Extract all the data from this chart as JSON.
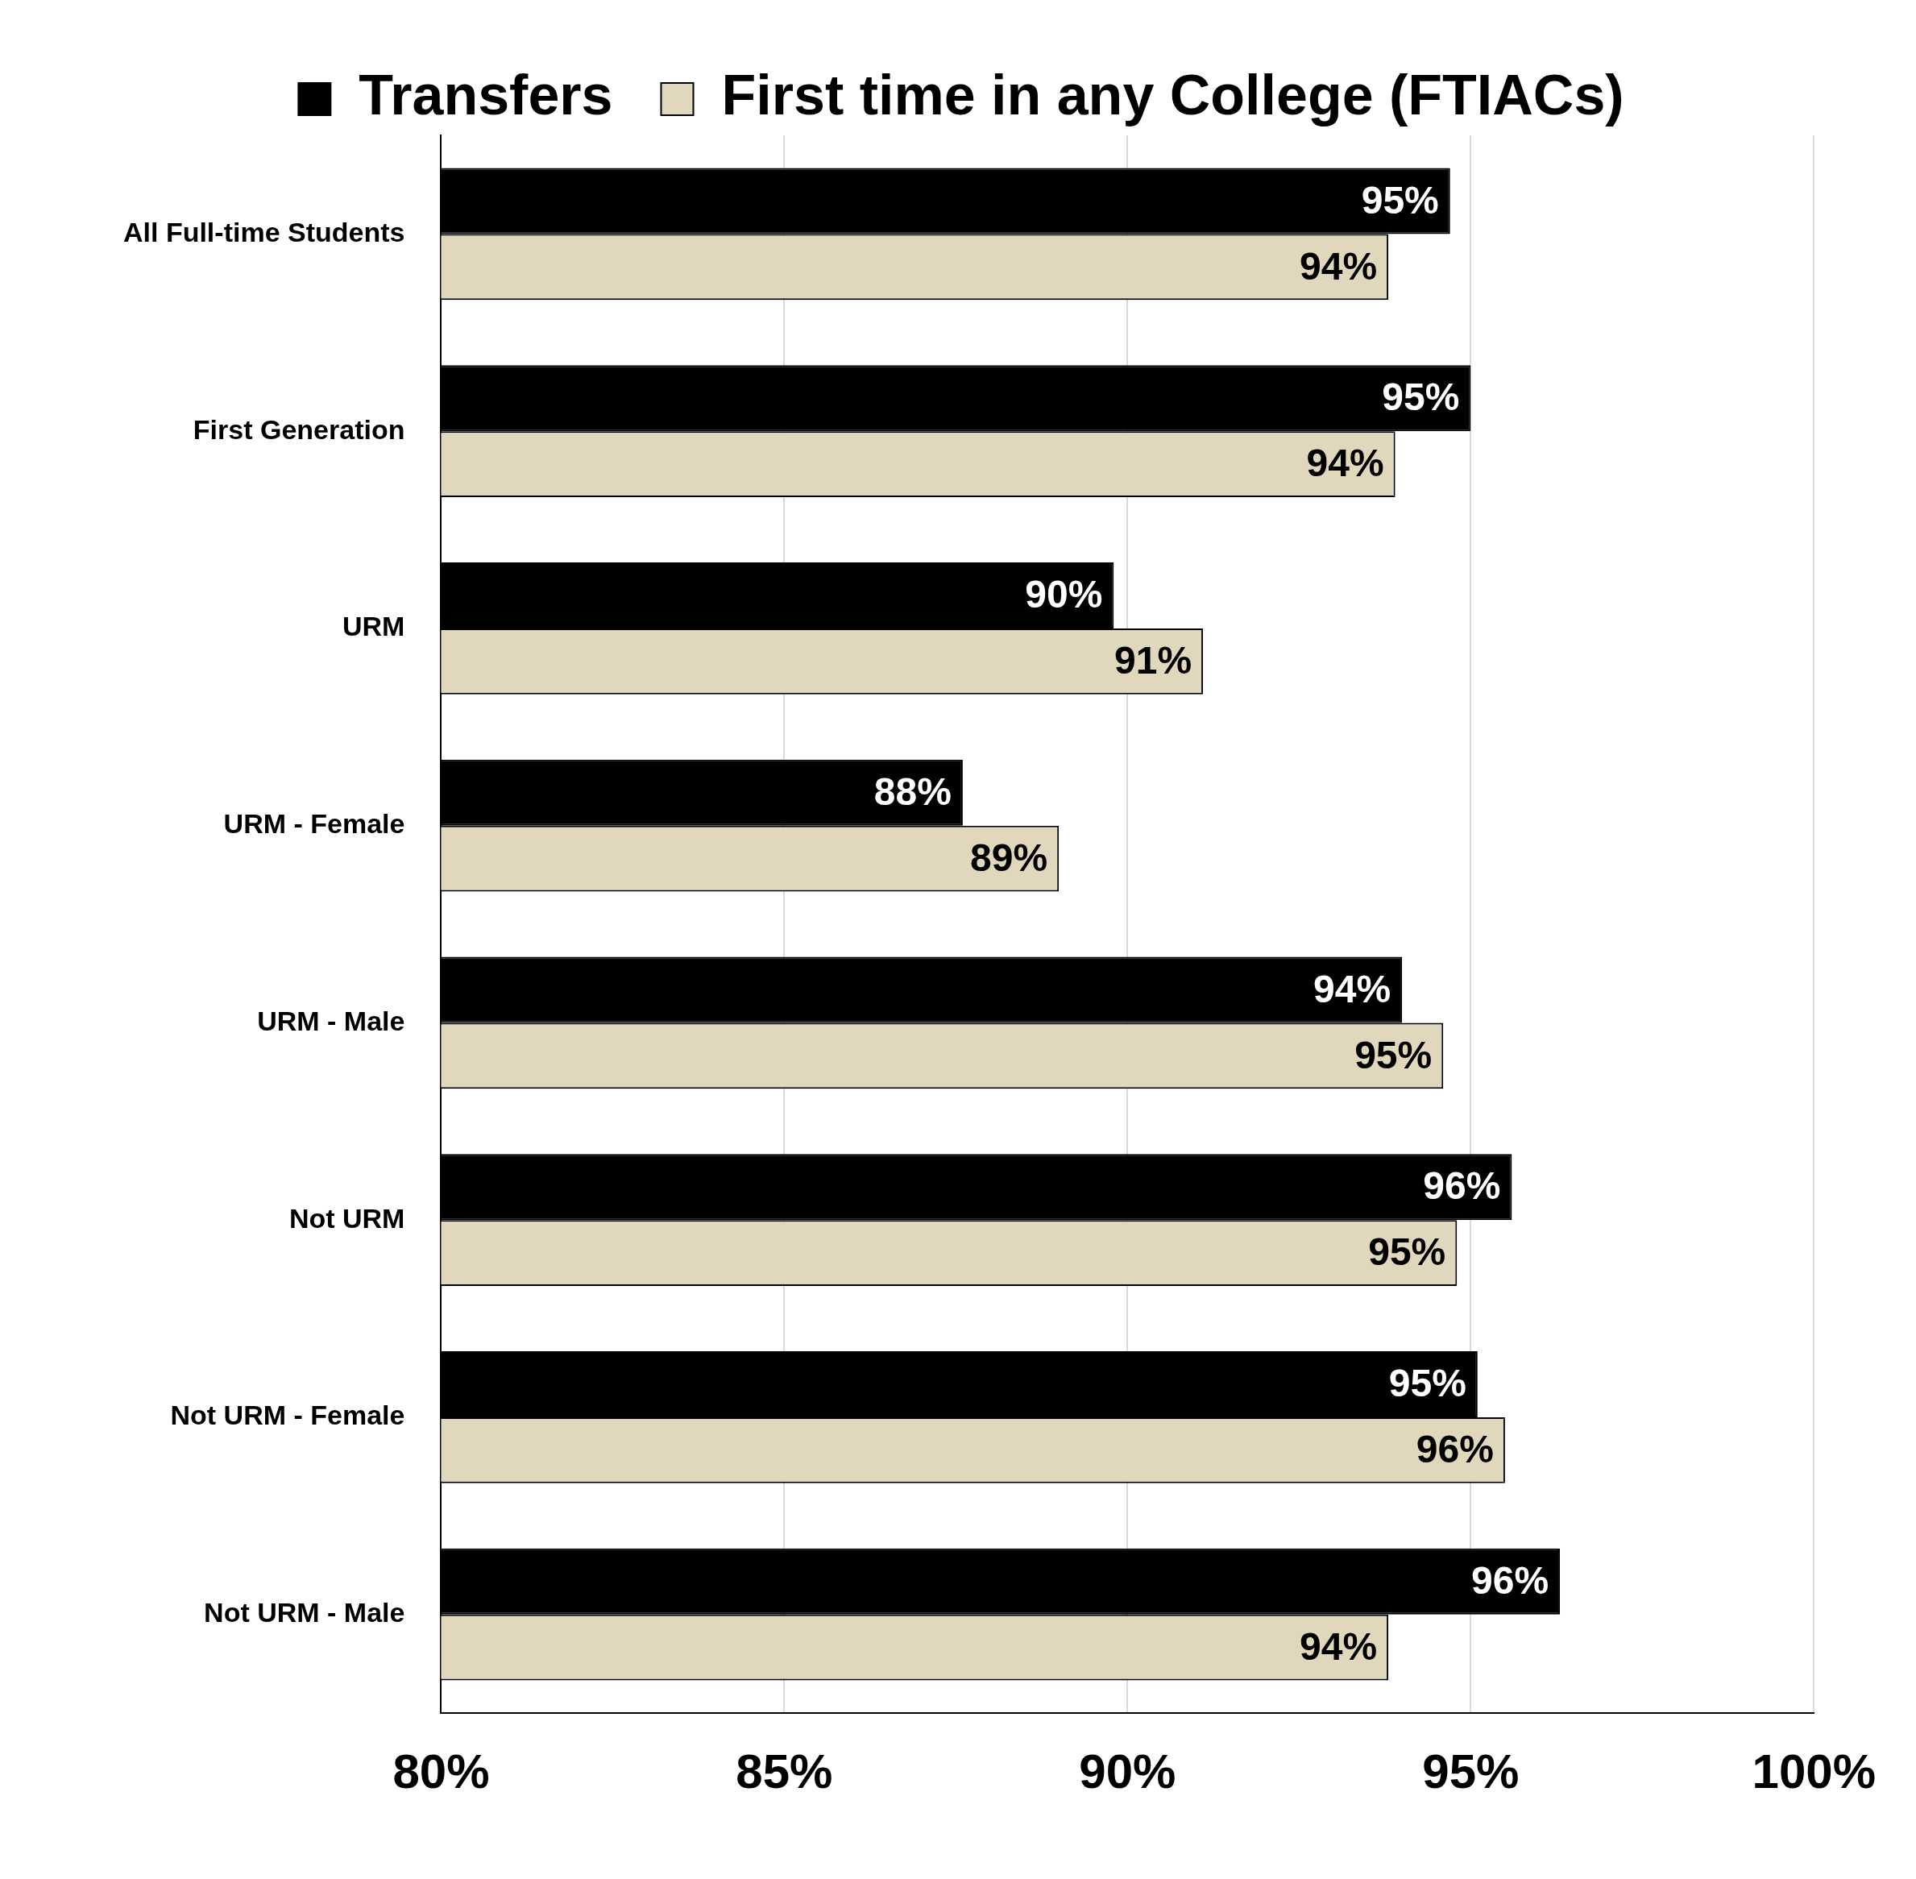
{
  "chart_data": {
    "type": "bar",
    "orientation": "horizontal",
    "categories": [
      "All Full-time Students",
      "First Generation",
      "URM",
      "URM - Female",
      "URM - Male",
      "Not URM",
      "Not URM - Female",
      "Not URM - Male"
    ],
    "series": [
      {
        "name": "Transfers",
        "color": "#000000",
        "values": [
          94.7,
          95.0,
          89.8,
          87.6,
          94.0,
          95.6,
          95.1,
          96.3
        ],
        "value_labels": [
          "95%",
          "95%",
          "90%",
          "88%",
          "94%",
          "96%",
          "95%",
          "96%"
        ]
      },
      {
        "name": "First time in any College (FTIACs)",
        "color": "#e0d7bd",
        "values": [
          93.8,
          93.9,
          91.1,
          89.0,
          94.6,
          94.8,
          95.5,
          93.8
        ],
        "value_labels": [
          "94%",
          "94%",
          "91%",
          "89%",
          "95%",
          "95%",
          "96%",
          "94%"
        ]
      }
    ],
    "xlim": [
      80,
      100
    ],
    "xticks": [
      {
        "value": 80,
        "label": "80%"
      },
      {
        "value": 85,
        "label": "85%"
      },
      {
        "value": 90,
        "label": "90%"
      },
      {
        "value": 95,
        "label": "95%"
      },
      {
        "value": 100,
        "label": "100%"
      }
    ],
    "grid": "x",
    "legend": "top"
  }
}
